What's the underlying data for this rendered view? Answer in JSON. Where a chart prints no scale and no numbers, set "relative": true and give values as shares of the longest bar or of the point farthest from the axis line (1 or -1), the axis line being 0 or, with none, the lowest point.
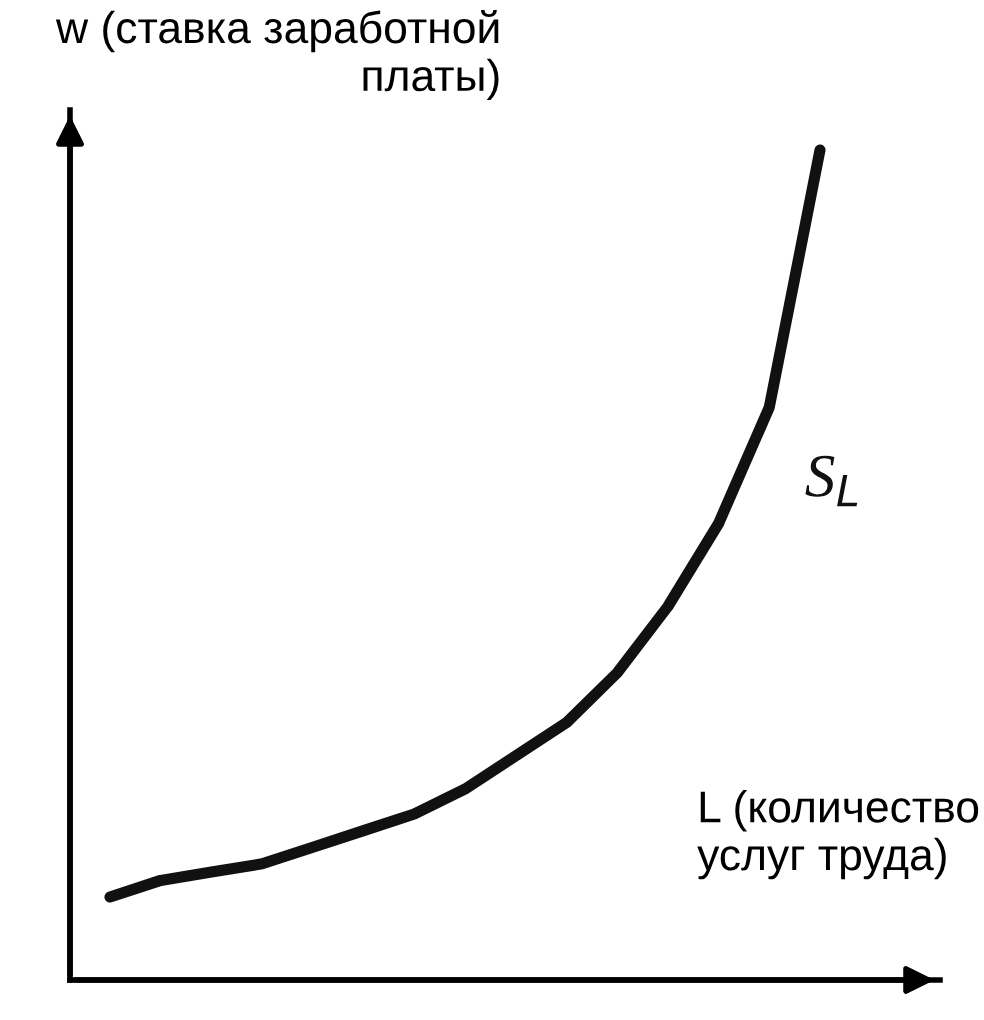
{
  "chart_data": {
    "type": "line",
    "relative": true,
    "ylabel": "w (ставка заработной\nплаты)",
    "xlabel": "L (количество\nуслуг труда)",
    "categories": [
      null,
      null,
      null,
      null,
      null,
      null,
      null,
      null,
      null,
      null,
      null,
      null,
      null,
      null,
      null
    ],
    "series": [
      {
        "name": "S$_{L}$",
        "color": "#111111",
        "values": [
          0.1,
          0.12,
          0.13,
          0.14,
          0.16,
          0.18,
          0.2,
          0.23,
          0.27,
          0.31,
          0.37,
          0.45,
          0.55,
          0.69,
          1.0
        ]
      }
    ],
    "grid": false,
    "legend": false,
    "marker": "none",
    "line_style": "solid"
  }
}
